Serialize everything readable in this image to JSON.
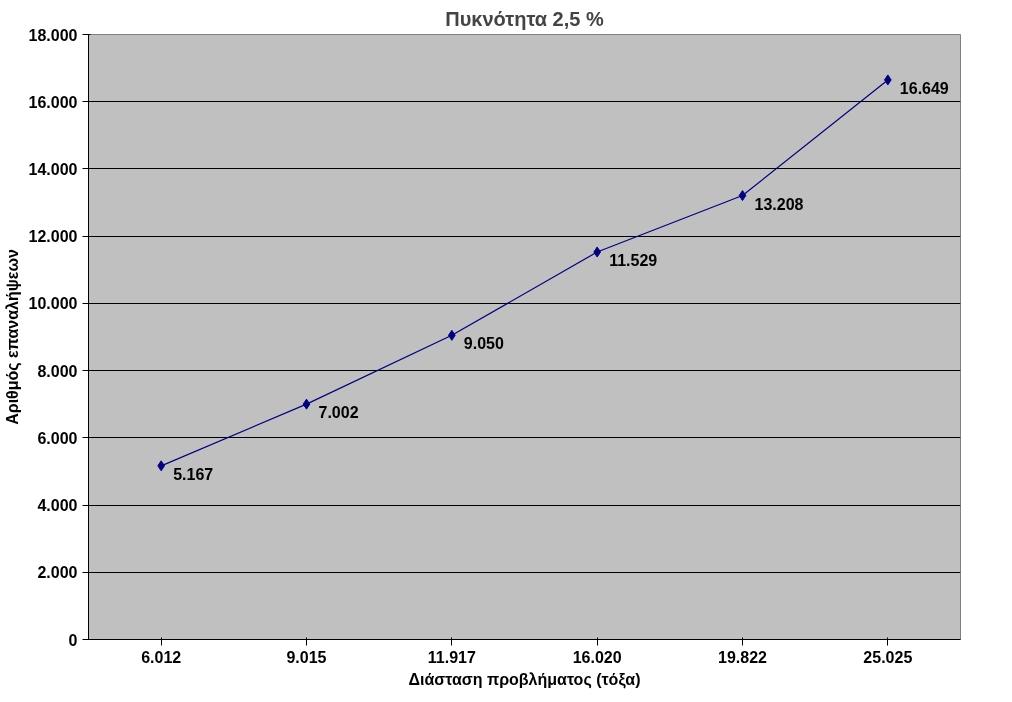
{
  "chart_data": {
    "type": "line",
    "title": "Πυκνότητα 2,5 %",
    "xlabel": "Διάσταση προβλήματος (τόξα)",
    "ylabel": "Αριθμός επαναλήψεων",
    "categories": [
      "6.012",
      "9.015",
      "11.917",
      "16.020",
      "19.822",
      "25.025"
    ],
    "series": [
      {
        "color": "#000080",
        "values": [
          5167,
          7002,
          9050,
          11529,
          13208,
          16649
        ],
        "value_labels": [
          "5.167",
          "7.002",
          "9.050",
          "11.529",
          "13.208",
          "16.649"
        ]
      }
    ],
    "ylim": [
      0,
      18000
    ],
    "yticks": [
      0,
      {
        "value": 2000,
        "label": "2.000"
      },
      {
        "value": 4000,
        "label": "4.000"
      },
      {
        "value": 6000,
        "label": "6.000"
      },
      {
        "value": 8000,
        "label": "8.000"
      },
      {
        "value": 10000,
        "label": "10.000"
      },
      {
        "value": 12000,
        "label": "12.000"
      },
      {
        "value": 14000,
        "label": "14.000"
      },
      {
        "value": 16000,
        "label": "16.000"
      },
      {
        "value": 18000,
        "label": "18.000"
      }
    ],
    "grid": "y",
    "marker": "diamond",
    "line_style": "solid"
  }
}
